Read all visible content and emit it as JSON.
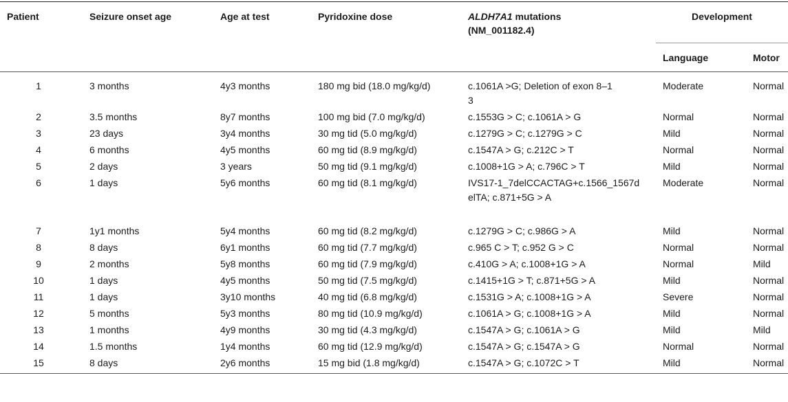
{
  "headers": {
    "patient": "Patient",
    "onset": "Seizure onset age",
    "age_test": "Age at test",
    "dose": "Pyridoxine dose",
    "mutations_gene": "ALDH7A1",
    "mutations_rest": " mutations",
    "mutations_ref": "(NM_001182.4)",
    "development": "Development",
    "language": "Language",
    "motor": "Motor"
  },
  "rows": [
    {
      "patient": "1",
      "onset": "3 months",
      "age_test": "4y3 months",
      "dose": "180 mg bid (18.0 mg/kg/d)",
      "mutations": "c.1061A >G; Deletion of exon 8–13",
      "language": "Moderate",
      "motor": "Normal"
    },
    {
      "patient": "2",
      "onset": "3.5 months",
      "age_test": "8y7 months",
      "dose": "100 mg bid (7.0 mg/kg/d)",
      "mutations": "c.1553G > C; c.1061A > G",
      "language": "Normal",
      "motor": "Normal"
    },
    {
      "patient": "3",
      "onset": "23 days",
      "age_test": "3y4 months",
      "dose": "30 mg tid (5.0 mg/kg/d)",
      "mutations": "c.1279G > C; c.1279G > C",
      "language": "Mild",
      "motor": "Normal"
    },
    {
      "patient": "4",
      "onset": "6 months",
      "age_test": "4y5 months",
      "dose": "60 mg tid (8.9 mg/kg/d)",
      "mutations": "c.1547A > G; c.212C > T",
      "language": "Normal",
      "motor": "Normal"
    },
    {
      "patient": "5",
      "onset": "2 days",
      "age_test": "3 years",
      "dose": "50 mg tid (9.1 mg/kg/d)",
      "mutations": "c.1008+1G > A; c.796C > T",
      "language": "Mild",
      "motor": "Normal"
    },
    {
      "patient": "6",
      "onset": "1 days",
      "age_test": "5y6 months",
      "dose": "60 mg tid (8.1 mg/kg/d)",
      "mutations": "IVS17-1_7delCCACTAG+c.1566_1567delTA; c.871+5G > A",
      "language": "Moderate",
      "motor": "Normal"
    },
    {
      "patient": "7",
      "onset": "1y1 months",
      "age_test": "5y4 months",
      "dose": "60 mg tid (8.2 mg/kg/d)",
      "mutations": "c.1279G > C; c.986G > A",
      "language": "Mild",
      "motor": "Normal"
    },
    {
      "patient": "8",
      "onset": "8 days",
      "age_test": "6y1 months",
      "dose": "60 mg tid (7.7 mg/kg/d)",
      "mutations": "c.965 C > T; c.952 G > C",
      "language": "Normal",
      "motor": "Normal"
    },
    {
      "patient": "9",
      "onset": "2 months",
      "age_test": "5y8 months",
      "dose": "60 mg tid (7.9 mg/kg/d)",
      "mutations": "c.410G > A; c.1008+1G > A",
      "language": "Normal",
      "motor": "Mild"
    },
    {
      "patient": "10",
      "onset": "1 days",
      "age_test": "4y5 months",
      "dose": "50 mg tid (7.5 mg/kg/d)",
      "mutations": "c.1415+1G > T; c.871+5G > A",
      "language": "Mild",
      "motor": "Normal"
    },
    {
      "patient": "11",
      "onset": "1 days",
      "age_test": "3y10 months",
      "dose": "40 mg tid (6.8 mg/kg/d)",
      "mutations": "c.1531G > A; c.1008+1G > A",
      "language": "Severe",
      "motor": "Normal"
    },
    {
      "patient": "12",
      "onset": "5 months",
      "age_test": "5y3 months",
      "dose": "80 mg tid (10.9 mg/kg/d)",
      "mutations": "c.1061A > G; c.1008+1G > A",
      "language": "Mild",
      "motor": "Normal"
    },
    {
      "patient": "13",
      "onset": "1 months",
      "age_test": "4y9 months",
      "dose": "30 mg tid (4.3 mg/kg/d)",
      "mutations": "c.1547A > G; c.1061A > G",
      "language": "Mild",
      "motor": "Mild"
    },
    {
      "patient": "14",
      "onset": "1.5 months",
      "age_test": "1y4 months",
      "dose": "60 mg tid (12.9 mg/kg/d)",
      "mutations": "c.1547A > G; c.1547A > G",
      "language": "Normal",
      "motor": "Normal"
    },
    {
      "patient": "15",
      "onset": "8 days",
      "age_test": "2y6 months",
      "dose": "15 mg bid (1.8 mg/kg/d)",
      "mutations": "c.1547A > G; c.1072C > T",
      "language": "Mild",
      "motor": "Normal"
    }
  ]
}
